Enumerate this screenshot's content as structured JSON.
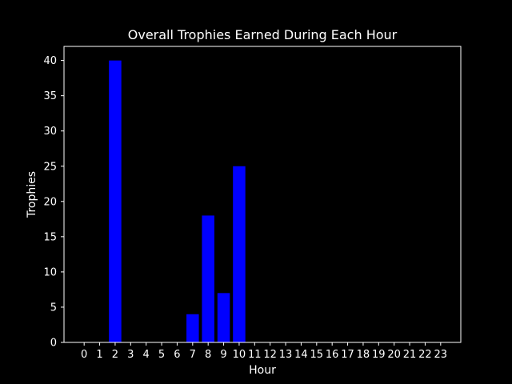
{
  "chart_data": {
    "type": "bar",
    "title": "Overall Trophies Earned During Each Hour",
    "xlabel": "Hour",
    "ylabel": "Trophies",
    "categories": [
      "0",
      "1",
      "2",
      "3",
      "4",
      "5",
      "6",
      "7",
      "8",
      "9",
      "10",
      "11",
      "12",
      "13",
      "14",
      "15",
      "16",
      "17",
      "18",
      "19",
      "20",
      "21",
      "22",
      "23"
    ],
    "values": [
      0,
      0,
      40,
      0,
      0,
      0,
      0,
      4,
      18,
      7,
      25,
      0,
      0,
      0,
      0,
      0,
      0,
      0,
      0,
      0,
      0,
      0,
      0,
      0
    ],
    "y_ticks": [
      0,
      5,
      10,
      15,
      20,
      25,
      30,
      35,
      40
    ],
    "ylim": [
      0,
      42
    ],
    "grid": false,
    "legend": "none"
  },
  "colors": {
    "background": "#000000",
    "axes": "#ffffff",
    "text": "#ffffff",
    "bar": "#0000ff"
  }
}
